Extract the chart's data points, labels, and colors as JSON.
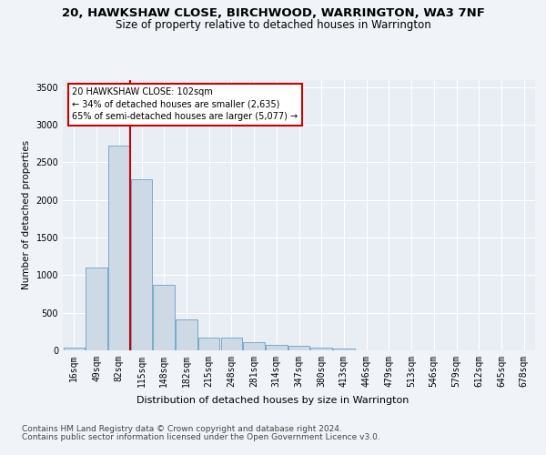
{
  "title1": "20, HAWKSHAW CLOSE, BIRCHWOOD, WARRINGTON, WA3 7NF",
  "title2": "Size of property relative to detached houses in Warrington",
  "xlabel": "Distribution of detached houses by size in Warrington",
  "ylabel": "Number of detached properties",
  "categories": [
    "16sqm",
    "49sqm",
    "82sqm",
    "115sqm",
    "148sqm",
    "182sqm",
    "215sqm",
    "248sqm",
    "281sqm",
    "314sqm",
    "347sqm",
    "380sqm",
    "413sqm",
    "446sqm",
    "479sqm",
    "513sqm",
    "546sqm",
    "579sqm",
    "612sqm",
    "645sqm",
    "678sqm"
  ],
  "values": [
    40,
    1100,
    2720,
    2280,
    870,
    410,
    175,
    175,
    110,
    75,
    55,
    40,
    30,
    0,
    0,
    0,
    0,
    0,
    0,
    0,
    0
  ],
  "bar_color": "#cdd9e5",
  "bar_edge_color": "#7aaac8",
  "vline_color": "#cc0000",
  "annotation_text": "20 HAWKSHAW CLOSE: 102sqm\n← 34% of detached houses are smaller (2,635)\n65% of semi-detached houses are larger (5,077) →",
  "annotation_box_color": "#cc0000",
  "ylim": [
    0,
    3600
  ],
  "yticks": [
    0,
    500,
    1000,
    1500,
    2000,
    2500,
    3000,
    3500
  ],
  "background_color": "#f0f4f8",
  "plot_bg_color": "#e8eef4",
  "grid_color": "#ffffff",
  "footer1": "Contains HM Land Registry data © Crown copyright and database right 2024.",
  "footer2": "Contains public sector information licensed under the Open Government Licence v3.0.",
  "title1_fontsize": 9.5,
  "title2_fontsize": 8.5,
  "xlabel_fontsize": 8,
  "ylabel_fontsize": 7.5,
  "tick_fontsize": 7,
  "annotation_fontsize": 7,
  "footer_fontsize": 6.5
}
